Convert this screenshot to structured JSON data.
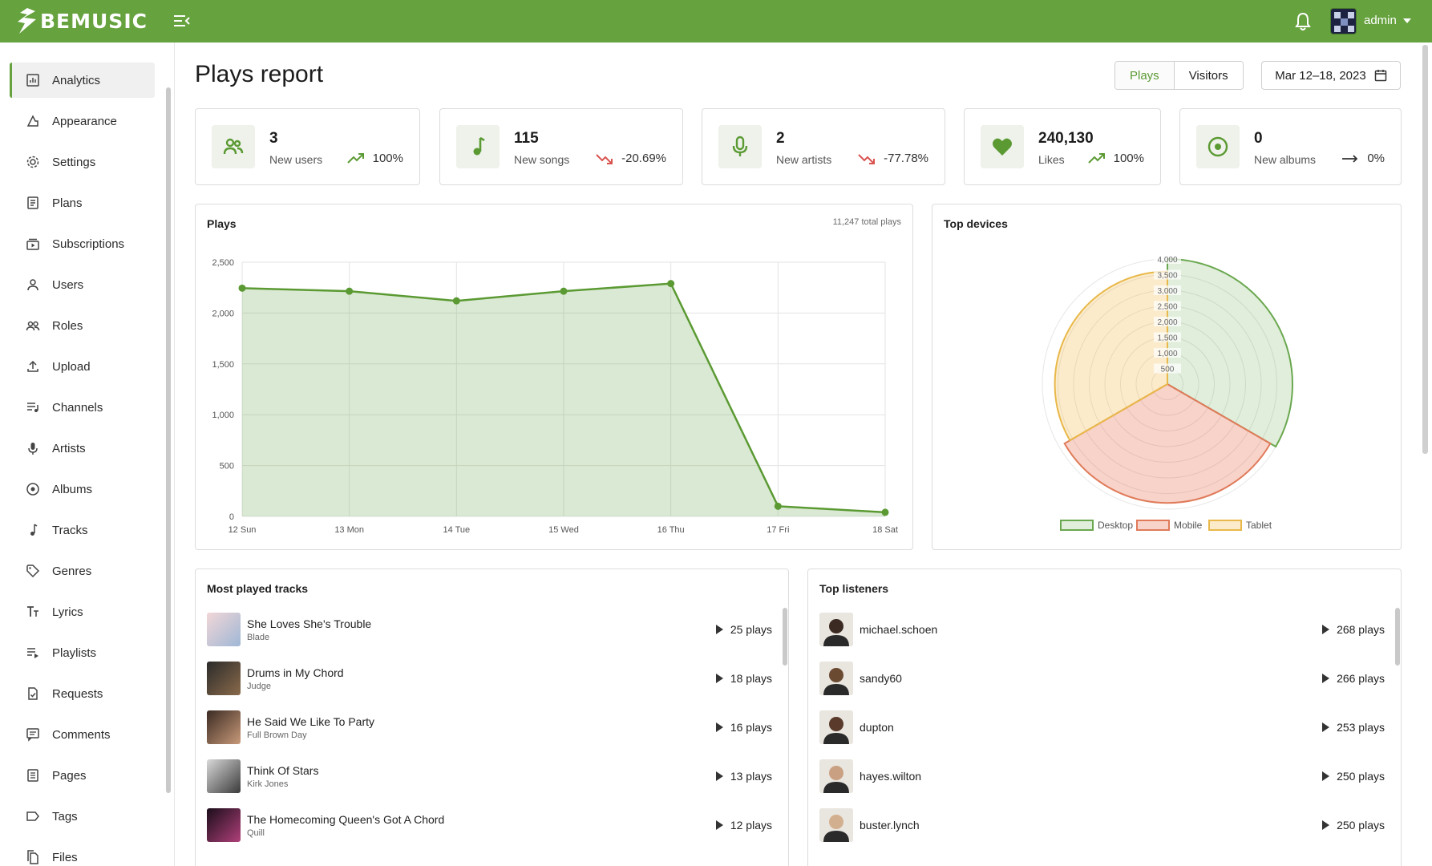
{
  "app": {
    "logo_text": "BEMUSIC",
    "user_name": "admin"
  },
  "colors": {
    "brand": "#66a23e",
    "desktop": "#6aa84f",
    "mobile": "#e07b5a",
    "tablet": "#e8b84a"
  },
  "sidebar": {
    "items": [
      {
        "label": "Analytics",
        "icon": "analytics-icon",
        "active": true
      },
      {
        "label": "Appearance",
        "icon": "appearance-icon"
      },
      {
        "label": "Settings",
        "icon": "gear-icon"
      },
      {
        "label": "Plans",
        "icon": "plans-icon"
      },
      {
        "label": "Subscriptions",
        "icon": "subscriptions-icon"
      },
      {
        "label": "Users",
        "icon": "user-icon"
      },
      {
        "label": "Roles",
        "icon": "roles-icon"
      },
      {
        "label": "Upload",
        "icon": "upload-icon"
      },
      {
        "label": "Channels",
        "icon": "channels-icon"
      },
      {
        "label": "Artists",
        "icon": "microphone-icon"
      },
      {
        "label": "Albums",
        "icon": "album-icon"
      },
      {
        "label": "Tracks",
        "icon": "music-note-icon"
      },
      {
        "label": "Genres",
        "icon": "tag-icon"
      },
      {
        "label": "Lyrics",
        "icon": "lyrics-icon"
      },
      {
        "label": "Playlists",
        "icon": "playlist-icon"
      },
      {
        "label": "Requests",
        "icon": "requests-icon"
      },
      {
        "label": "Comments",
        "icon": "comments-icon"
      },
      {
        "label": "Pages",
        "icon": "pages-icon"
      },
      {
        "label": "Tags",
        "icon": "label-icon"
      },
      {
        "label": "Files",
        "icon": "files-icon"
      }
    ]
  },
  "main": {
    "title": "Plays report",
    "toggle": {
      "plays": "Plays",
      "visitors": "Visitors"
    },
    "date_range": "Mar 12–18, 2023",
    "stats": [
      {
        "value": "3",
        "label": "New users",
        "trend": "100%",
        "direction": "up",
        "icon": "users-icon"
      },
      {
        "value": "115",
        "label": "New songs",
        "trend": "-20.69%",
        "direction": "down",
        "icon": "music-note-icon"
      },
      {
        "value": "2",
        "label": "New artists",
        "trend": "-77.78%",
        "direction": "down",
        "icon": "microphone-icon"
      },
      {
        "value": "240,130",
        "label": "Likes",
        "trend": "100%",
        "direction": "up",
        "icon": "heart-icon"
      },
      {
        "value": "0",
        "label": "New albums",
        "trend": "0%",
        "direction": "flat",
        "icon": "album-icon"
      }
    ]
  },
  "plays_panel": {
    "title": "Plays",
    "total": "11,247 total plays"
  },
  "devices_panel": {
    "title": "Top devices"
  },
  "chart_data": [
    {
      "type": "area",
      "title": "Plays",
      "categories": [
        "12 Sun",
        "13 Mon",
        "14 Tue",
        "15 Wed",
        "16 Thu",
        "17 Fri",
        "18 Sat"
      ],
      "values": [
        2245,
        2215,
        2120,
        2215,
        2290,
        100,
        40
      ],
      "ylim": [
        0,
        2500
      ],
      "yticks": [
        "0",
        "500",
        "1,000",
        "1,500",
        "2,000",
        "2,500"
      ],
      "grid": true
    },
    {
      "type": "polar-area",
      "title": "Top devices",
      "categories": [
        "Desktop",
        "Mobile",
        "Tablet"
      ],
      "values": [
        4000,
        3800,
        3600
      ],
      "rlim": [
        0,
        4000
      ],
      "rticks": [
        "500",
        "1,000",
        "1,500",
        "2,000",
        "2,500",
        "3,000",
        "3,500",
        "4,000"
      ],
      "legend": "bottom"
    }
  ],
  "tracks_panel": {
    "title": "Most played tracks",
    "rows": [
      {
        "title": "She Loves She's Trouble",
        "artist": "Blade",
        "plays": "25 plays"
      },
      {
        "title": "Drums in My Chord",
        "artist": "Judge",
        "plays": "18 plays"
      },
      {
        "title": "He Said We Like To Party",
        "artist": "Full Brown Day",
        "plays": "16 plays"
      },
      {
        "title": "Think Of Stars",
        "artist": "Kirk Jones",
        "plays": "13 plays"
      },
      {
        "title": "The Homecoming Queen's Got A Chord",
        "artist": "Quill",
        "plays": "12 plays"
      }
    ]
  },
  "listeners_panel": {
    "title": "Top listeners",
    "rows": [
      {
        "name": "michael.schoen",
        "plays": "268 plays"
      },
      {
        "name": "sandy60",
        "plays": "266 plays"
      },
      {
        "name": "dupton",
        "plays": "253 plays"
      },
      {
        "name": "hayes.wilton",
        "plays": "250 plays"
      },
      {
        "name": "buster.lynch",
        "plays": "250 plays"
      }
    ]
  }
}
